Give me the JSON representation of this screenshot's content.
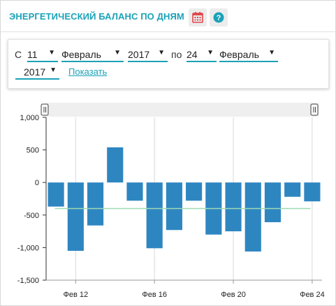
{
  "header": {
    "title": "ЭНЕРГЕТИЧЕСКИЙ БАЛАНС ПО ДНЯМ",
    "calendar_icon": "calendar-icon",
    "help_icon": "help-icon",
    "accent": "#1aa2b8"
  },
  "filter": {
    "from_label": "С",
    "to_label": "по",
    "from_day": "11",
    "from_month": "Февраль",
    "from_year": "2017",
    "to_day": "24",
    "to_month": "Февраль",
    "to_year": "2017",
    "show_link": "Показать"
  },
  "chart_data": {
    "type": "bar",
    "x": [
      "2017-02-11",
      "2017-02-12",
      "2017-02-13",
      "2017-02-14",
      "2017-02-15",
      "2017-02-16",
      "2017-02-17",
      "2017-02-18",
      "2017-02-19",
      "2017-02-20",
      "2017-02-21",
      "2017-02-22",
      "2017-02-23",
      "2017-02-24"
    ],
    "values": [
      -370,
      -1050,
      -660,
      540,
      -280,
      -1010,
      -730,
      -280,
      -800,
      -750,
      -1060,
      -610,
      -220,
      -290
    ],
    "average": -400,
    "bar_color": "#2e86c1",
    "average_color": "#9ed9b5",
    "ylim": [
      -1500,
      1000
    ],
    "yticks": [
      1000,
      500,
      0,
      -500,
      -1000,
      -1500
    ],
    "ytick_labels": [
      "1,000",
      "500",
      "0",
      "-500",
      "-1,000",
      "-1,500"
    ],
    "xtick_labels": [
      {
        "index": 1,
        "label": "Фев 12"
      },
      {
        "index": 5,
        "label": "Фев 16"
      },
      {
        "index": 9,
        "label": "Фев 20"
      },
      {
        "index": 13,
        "label": "Фев 24"
      }
    ],
    "grid": "vertical"
  }
}
